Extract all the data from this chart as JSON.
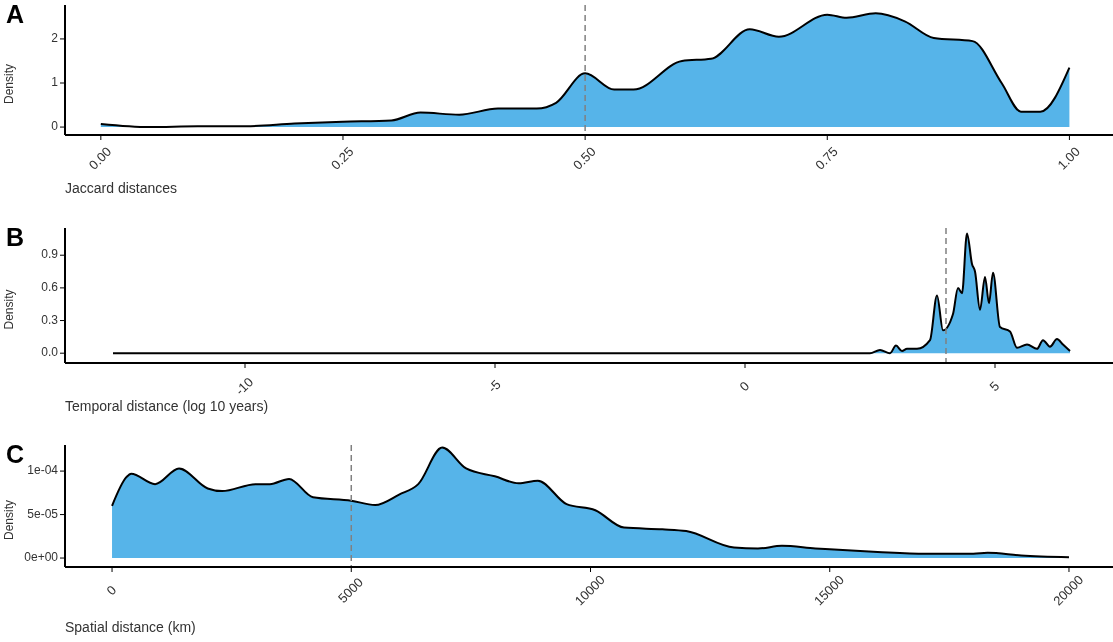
{
  "chart_data": [
    {
      "type": "area",
      "title": "A",
      "xlabel": "Jaccard distances",
      "ylabel": "Density",
      "color": "#56b4e9",
      "line_style": "solid",
      "grid": false,
      "x": [
        0,
        0.05,
        0.1,
        0.15,
        0.2,
        0.25,
        0.3,
        0.33,
        0.37,
        0.41,
        0.45,
        0.47,
        0.5,
        0.53,
        0.55,
        0.6,
        0.63,
        0.67,
        0.7,
        0.75,
        0.77,
        0.8,
        0.83,
        0.86,
        0.9,
        0.93,
        0.95,
        0.97,
        1
      ],
      "values": [
        0.07,
        0,
        0.02,
        0.02,
        0.08,
        0.12,
        0.15,
        0.33,
        0.28,
        0.42,
        0.42,
        0.55,
        1.22,
        0.85,
        0.85,
        1.5,
        1.55,
        2.22,
        2.05,
        2.55,
        2.48,
        2.58,
        2.4,
        2.02,
        1.95,
        1.0,
        0.35,
        0.35,
        1.35
      ],
      "xlim": [
        -0.037,
        1.045
      ],
      "xticks": [
        {
          "value": 0,
          "label": "0.00"
        },
        {
          "value": 0.25,
          "label": "0.25"
        },
        {
          "value": 0.5,
          "label": "0.50"
        },
        {
          "value": 0.75,
          "label": "0.75"
        },
        {
          "value": 1,
          "label": "1.00"
        }
      ],
      "ylim": [
        -0.18,
        2.77
      ],
      "yticks": [
        0,
        1,
        2
      ],
      "ref_lines": [
        {
          "axis": "x",
          "value": 0.5,
          "color": "#808080",
          "line_style": "dashed"
        }
      ]
    },
    {
      "type": "area",
      "title": "B",
      "xlabel": "Temporal distance (log 10 years)",
      "ylabel": "Density",
      "color": "#56b4e9",
      "line_style": "solid",
      "grid": false,
      "x": [
        -12.64,
        2.5,
        2.7,
        2.9,
        3.02,
        3.14,
        3.24,
        3.44,
        3.7,
        3.84,
        3.96,
        4.16,
        4.26,
        4.34,
        4.44,
        4.54,
        4.6,
        4.7,
        4.8,
        4.88,
        4.96,
        5.1,
        5.3,
        5.44,
        5.64,
        5.84,
        5.96,
        6.1,
        6.24,
        6.36,
        6.5
      ],
      "values": [
        0,
        0,
        0.03,
        0,
        0.07,
        0.02,
        0.04,
        0.04,
        0.12,
        0.53,
        0.21,
        0.36,
        0.6,
        0.55,
        1.1,
        0.82,
        0.75,
        0.4,
        0.7,
        0.46,
        0.74,
        0.24,
        0.2,
        0.05,
        0.08,
        0.04,
        0.12,
        0.06,
        0.13,
        0.08,
        0.02
      ],
      "xlim": [
        -13.6,
        7.36
      ],
      "xticks": [
        -10,
        -5,
        0,
        5
      ],
      "ylim": [
        -0.09,
        1.15
      ],
      "yticks": [
        {
          "value": 0,
          "label": "0.0"
        },
        {
          "value": 0.3,
          "label": "0.3"
        },
        {
          "value": 0.6,
          "label": "0.6"
        },
        {
          "value": 0.9,
          "label": "0.9"
        }
      ],
      "ref_lines": [
        {
          "axis": "x",
          "value": 4.02,
          "color": "#808080",
          "line_style": "dashed"
        }
      ]
    },
    {
      "type": "area",
      "title": "C",
      "xlabel": "Spatial distance (km)",
      "ylabel": "Density",
      "color": "#56b4e9",
      "line_style": "solid",
      "grid": false,
      "x": [
        0,
        300,
        400,
        900,
        1400,
        2000,
        2300,
        3000,
        3300,
        3700,
        4200,
        5000,
        5500,
        6000,
        6400,
        6900,
        7400,
        8000,
        8500,
        8900,
        9500,
        10100,
        10700,
        11500,
        12000,
        13000,
        13500,
        14000,
        14700,
        15000,
        16000,
        17000,
        18000,
        18300,
        19000,
        20000
      ],
      "values": [
        6e-05,
        9.3e-05,
        9.7e-05,
        8.5e-05,
        0.000103,
        8e-05,
        7.7e-05,
        8.5e-05,
        8.5e-05,
        9.1e-05,
        7e-05,
        6.6e-05,
        6.1e-05,
        7.3e-05,
        8.5e-05,
        0.000127,
        0.000103,
        9.4e-05,
        8.6e-05,
        8.9e-05,
        6.2e-05,
        5.5e-05,
        3.5e-05,
        3.3e-05,
        3.1e-05,
        1.2e-05,
        1.1e-05,
        1.4e-05,
        1.1e-05,
        1e-05,
        7e-06,
        5e-06,
        5e-06,
        6e-06,
        3e-06,
        1e-06
      ],
      "xlim": [
        -983,
        20920
      ],
      "xticks": [
        0,
        5000,
        10000,
        15000,
        20000
      ],
      "ylim": [
        -1.03e-05,
        0.00013
      ],
      "yticks": [
        {
          "value": 0,
          "label": "0e+00"
        },
        {
          "value": 5e-05,
          "label": "5e-05"
        },
        {
          "value": 0.0001,
          "label": "1e-04"
        }
      ],
      "ref_lines": [
        {
          "axis": "x",
          "value": 5000,
          "color": "#808080",
          "line_style": "dashed"
        }
      ]
    }
  ]
}
